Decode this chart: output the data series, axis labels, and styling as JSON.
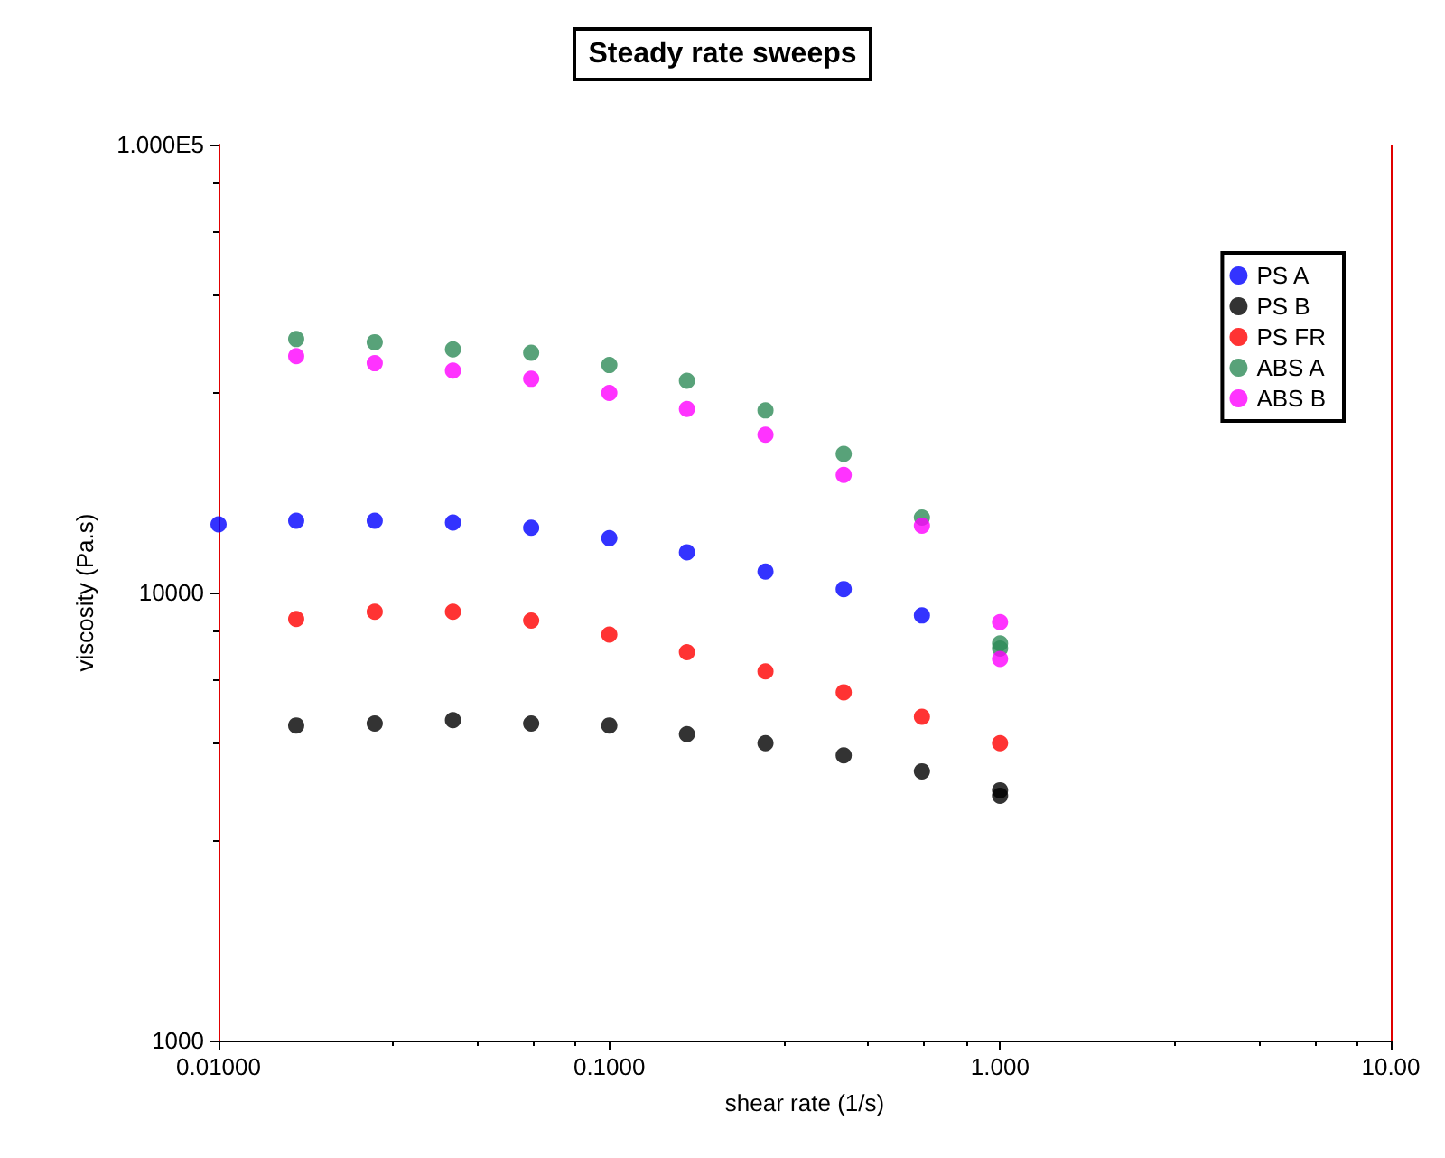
{
  "chart_data": {
    "type": "scatter",
    "title": "Steady rate sweeps",
    "xlabel": "shear rate (1/s)",
    "ylabel": "viscosity (Pa.s)",
    "log": "xy",
    "marker": "circle",
    "legend": "top right",
    "grid": false,
    "xlim": [
      0.01,
      10
    ],
    "xticks": [
      {
        "value": 0.01,
        "label": "0.01000"
      },
      {
        "value": 0.1,
        "label": "0.1000"
      },
      {
        "value": 1,
        "label": "1.000"
      },
      {
        "value": 10,
        "label": "10.00"
      }
    ],
    "ylim": [
      1000,
      100000
    ],
    "yticks": [
      1000,
      10000,
      {
        "value": 100000,
        "label": "1.000E5"
      }
    ],
    "series": [
      {
        "name": "PS A",
        "color": "#0000ff",
        "x": [
          0.01,
          0.0158,
          0.0251,
          0.0398,
          0.0631,
          0.1,
          0.158,
          0.251,
          0.398,
          0.631
        ],
        "values": [
          14200,
          14460,
          14460,
          14330,
          13950,
          13220,
          12300,
          11140,
          10180,
          8890
        ]
      },
      {
        "name": "PS B",
        "color": "#000000",
        "x": [
          0.0158,
          0.0251,
          0.0398,
          0.0631,
          0.1,
          0.158,
          0.251,
          0.398,
          0.631,
          1,
          1
        ],
        "values": [
          5050,
          5100,
          5190,
          5100,
          5050,
          4830,
          4610,
          4330,
          3990,
          3620,
          3520
        ]
      },
      {
        "name": "PS FR",
        "color": "#ff0000",
        "x": [
          0.0158,
          0.0251,
          0.0398,
          0.0631,
          0.1,
          0.158,
          0.251,
          0.398,
          0.631,
          1
        ],
        "values": [
          8730,
          9060,
          9060,
          8660,
          8060,
          7360,
          6670,
          5990,
          5280,
          4610
        ]
      },
      {
        "name": "ABS A",
        "color": "#2e8b57",
        "x": [
          0.0158,
          0.0251,
          0.0398,
          0.0631,
          0.1,
          0.158,
          0.251,
          0.398,
          0.631,
          1,
          1
        ],
        "values": [
          36800,
          36200,
          34900,
          34300,
          32200,
          29700,
          25500,
          20400,
          14700,
          7700,
          7500
        ]
      },
      {
        "name": "ABS B",
        "color": "#ff00ff",
        "x": [
          0.0158,
          0.0251,
          0.0398,
          0.0631,
          0.1,
          0.158,
          0.251,
          0.398,
          0.631,
          1,
          1
        ],
        "values": [
          33700,
          32500,
          31300,
          30000,
          27900,
          25700,
          22500,
          18300,
          14100,
          8590,
          7110
        ]
      }
    ]
  }
}
